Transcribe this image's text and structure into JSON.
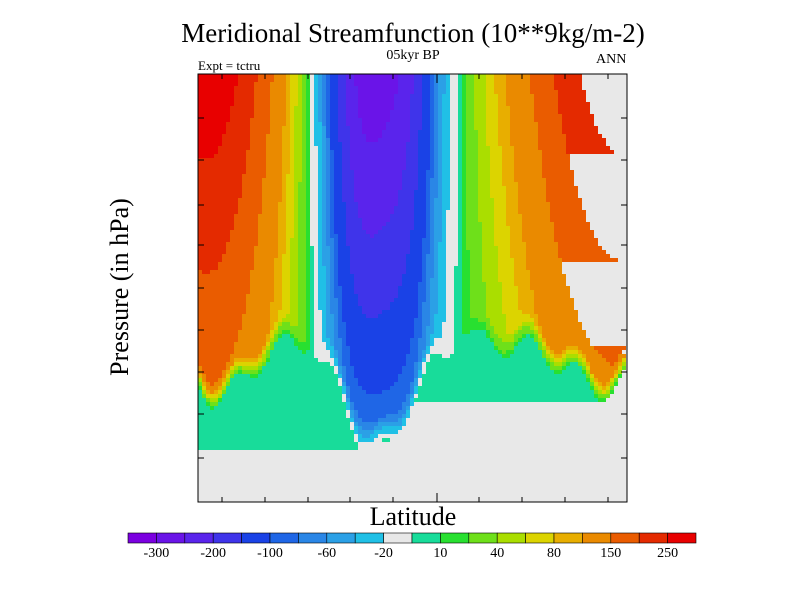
{
  "chart_data": {
    "type": "filled-contour",
    "title": "Meridional Streamfunction (10**9kg/m-2)",
    "subtitle": "05kyr BP",
    "experiment_label": "Expt = tctru",
    "season": "ANN",
    "xlabel": "Latitude",
    "ylabel": "Pressure (in hPa)",
    "colorbar": {
      "colors": [
        "#7b00e0",
        "#6a14e8",
        "#5a24ec",
        "#3f34ea",
        "#1a42e6",
        "#1f66e6",
        "#2a86e6",
        "#2ba0e6",
        "#20c0e6",
        "#e8e8e8",
        "#18dc9a",
        "#28e030",
        "#6ee01a",
        "#aade00",
        "#dcd400",
        "#e8ae00",
        "#ea8a00",
        "#ea5c00",
        "#e42a00",
        "#e80000"
      ],
      "tick_labels": [
        "-300",
        "-200",
        "-100",
        "-60",
        "-20",
        "10",
        "40",
        "80",
        "150",
        "250"
      ],
      "levels": [
        -300,
        -250,
        -200,
        -150,
        -100,
        -80,
        -60,
        -40,
        -20,
        0,
        10,
        20,
        40,
        60,
        80,
        100,
        150,
        200,
        250
      ]
    },
    "field_description": "negative cell (purple/blue) centred over the equatorial belt in the upper troposphere, positive cells (green to red) on both flanks, near-zero (grey) region at low levels",
    "cells": {
      "center_min": -300,
      "left_max": 250,
      "right_max": 250
    }
  }
}
